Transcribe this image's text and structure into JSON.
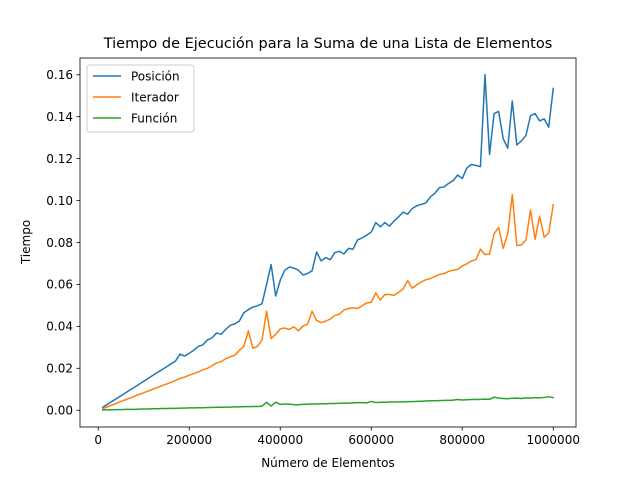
{
  "chart_data": {
    "type": "line",
    "title": "Tiempo de Ejecución para la Suma de una Lista de Elementos",
    "xlabel": "Número de Elementos",
    "ylabel": "Tiempo",
    "xlim": [
      -40000,
      1050000
    ],
    "ylim": [
      -0.008,
      0.168
    ],
    "xticks": [
      0,
      200000,
      400000,
      600000,
      800000,
      1000000
    ],
    "xtick_labels": [
      "0",
      "200000",
      "400000",
      "600000",
      "800000",
      "1000000"
    ],
    "yticks": [
      0.0,
      0.02,
      0.04,
      0.06,
      0.08,
      0.1,
      0.12,
      0.14,
      0.16
    ],
    "ytick_labels": [
      "0.00",
      "0.02",
      "0.04",
      "0.06",
      "0.08",
      "0.10",
      "0.12",
      "0.14",
      "0.16"
    ],
    "grid": false,
    "legend_position": "top-left",
    "x": [
      10000,
      20000,
      30000,
      40000,
      50000,
      60000,
      70000,
      80000,
      90000,
      100000,
      110000,
      120000,
      130000,
      140000,
      150000,
      160000,
      170000,
      180000,
      190000,
      200000,
      210000,
      220000,
      230000,
      240000,
      250000,
      260000,
      270000,
      280000,
      290000,
      300000,
      310000,
      320000,
      330000,
      340000,
      350000,
      360000,
      370000,
      380000,
      390000,
      400000,
      410000,
      420000,
      430000,
      440000,
      450000,
      460000,
      470000,
      480000,
      490000,
      500000,
      510000,
      520000,
      530000,
      540000,
      550000,
      560000,
      570000,
      580000,
      590000,
      600000,
      610000,
      620000,
      630000,
      640000,
      650000,
      660000,
      670000,
      680000,
      690000,
      700000,
      710000,
      720000,
      730000,
      740000,
      750000,
      760000,
      770000,
      780000,
      790000,
      800000,
      810000,
      820000,
      830000,
      840000,
      850000,
      860000,
      870000,
      880000,
      890000,
      900000,
      910000,
      920000,
      930000,
      940000,
      950000,
      960000,
      970000,
      980000,
      990000,
      1000000
    ],
    "series": [
      {
        "name": "Posición",
        "color": "#1f77b4",
        "values": [
          0.0014,
          0.0028,
          0.0042,
          0.0055,
          0.0069,
          0.0083,
          0.0097,
          0.011,
          0.0124,
          0.0138,
          0.0152,
          0.0166,
          0.018,
          0.0193,
          0.0207,
          0.0221,
          0.0235,
          0.0268,
          0.0258,
          0.0272,
          0.0286,
          0.0305,
          0.0312,
          0.0335,
          0.0345,
          0.0368,
          0.0362,
          0.0385,
          0.0405,
          0.0412,
          0.0425,
          0.0465,
          0.048,
          0.0492,
          0.0498,
          0.0508,
          0.06,
          0.0695,
          0.0545,
          0.062,
          0.0668,
          0.0683,
          0.0678,
          0.0668,
          0.0645,
          0.0652,
          0.0665,
          0.0755,
          0.0712,
          0.0728,
          0.0718,
          0.0752,
          0.0758,
          0.0745,
          0.0772,
          0.0768,
          0.0812,
          0.0822,
          0.0835,
          0.085,
          0.0895,
          0.0875,
          0.0895,
          0.0878,
          0.0902,
          0.0922,
          0.0945,
          0.0935,
          0.0962,
          0.0975,
          0.0982,
          0.0988,
          0.1018,
          0.1035,
          0.1062,
          0.1065,
          0.1082,
          0.1095,
          0.1122,
          0.1105,
          0.1155,
          0.1172,
          0.1168,
          0.1162,
          0.16,
          0.122,
          0.1415,
          0.1425,
          0.1295,
          0.125,
          0.1475,
          0.1265,
          0.1285,
          0.131,
          0.1405,
          0.1415,
          0.138,
          0.139,
          0.135,
          0.1535
        ]
      },
      {
        "name": "Iterador",
        "color": "#ff7f0e",
        "values": [
          0.0008,
          0.0016,
          0.0025,
          0.0033,
          0.0042,
          0.005,
          0.0058,
          0.0067,
          0.0075,
          0.0083,
          0.0092,
          0.01,
          0.0108,
          0.0117,
          0.0125,
          0.0133,
          0.0142,
          0.0152,
          0.0158,
          0.0167,
          0.0175,
          0.0183,
          0.0192,
          0.02,
          0.0212,
          0.0225,
          0.0232,
          0.0245,
          0.0255,
          0.0262,
          0.0285,
          0.0305,
          0.0378,
          0.0295,
          0.0305,
          0.0335,
          0.0472,
          0.0342,
          0.0362,
          0.0388,
          0.0392,
          0.0385,
          0.0398,
          0.0378,
          0.0402,
          0.041,
          0.0472,
          0.0428,
          0.0418,
          0.0425,
          0.0435,
          0.0452,
          0.0458,
          0.0478,
          0.0485,
          0.0488,
          0.0485,
          0.0498,
          0.0512,
          0.0515,
          0.056,
          0.0525,
          0.0552,
          0.0552,
          0.0548,
          0.0562,
          0.0578,
          0.0618,
          0.0582,
          0.0598,
          0.0612,
          0.0622,
          0.0628,
          0.0638,
          0.0648,
          0.0652,
          0.0662,
          0.0668,
          0.0672,
          0.0688,
          0.0698,
          0.0712,
          0.0718,
          0.0768,
          0.0742,
          0.0745,
          0.0842,
          0.0872,
          0.0772,
          0.0842,
          0.1028,
          0.0785,
          0.0788,
          0.0812,
          0.0955,
          0.0815,
          0.0925,
          0.0825,
          0.0845,
          0.098
        ]
      },
      {
        "name": "Función",
        "color": "#2ca02c",
        "values": [
          0.0001,
          0.0002,
          0.0002,
          0.0003,
          0.0003,
          0.0004,
          0.0004,
          0.0004,
          0.0005,
          0.0006,
          0.0006,
          0.0007,
          0.0007,
          0.0008,
          0.0008,
          0.0009,
          0.0009,
          0.001,
          0.001,
          0.0011,
          0.0011,
          0.0012,
          0.0012,
          0.0013,
          0.0013,
          0.0014,
          0.0014,
          0.0015,
          0.0015,
          0.0016,
          0.0016,
          0.0017,
          0.0017,
          0.0018,
          0.0018,
          0.0019,
          0.0038,
          0.002,
          0.0038,
          0.0028,
          0.003,
          0.0029,
          0.0027,
          0.0026,
          0.0028,
          0.0029,
          0.003,
          0.003,
          0.0031,
          0.0031,
          0.0032,
          0.0032,
          0.0033,
          0.0033,
          0.0034,
          0.0035,
          0.0036,
          0.0036,
          0.0035,
          0.0042,
          0.0037,
          0.0038,
          0.0038,
          0.0039,
          0.0039,
          0.004,
          0.004,
          0.0041,
          0.0041,
          0.0042,
          0.0043,
          0.0044,
          0.0045,
          0.0045,
          0.0046,
          0.0047,
          0.0047,
          0.0048,
          0.0051,
          0.0049,
          0.005,
          0.0051,
          0.0051,
          0.0052,
          0.0053,
          0.0052,
          0.0062,
          0.0058,
          0.0056,
          0.0055,
          0.0057,
          0.0058,
          0.0056,
          0.0059,
          0.0058,
          0.006,
          0.0059,
          0.0061,
          0.0064,
          0.006
        ]
      }
    ]
  }
}
